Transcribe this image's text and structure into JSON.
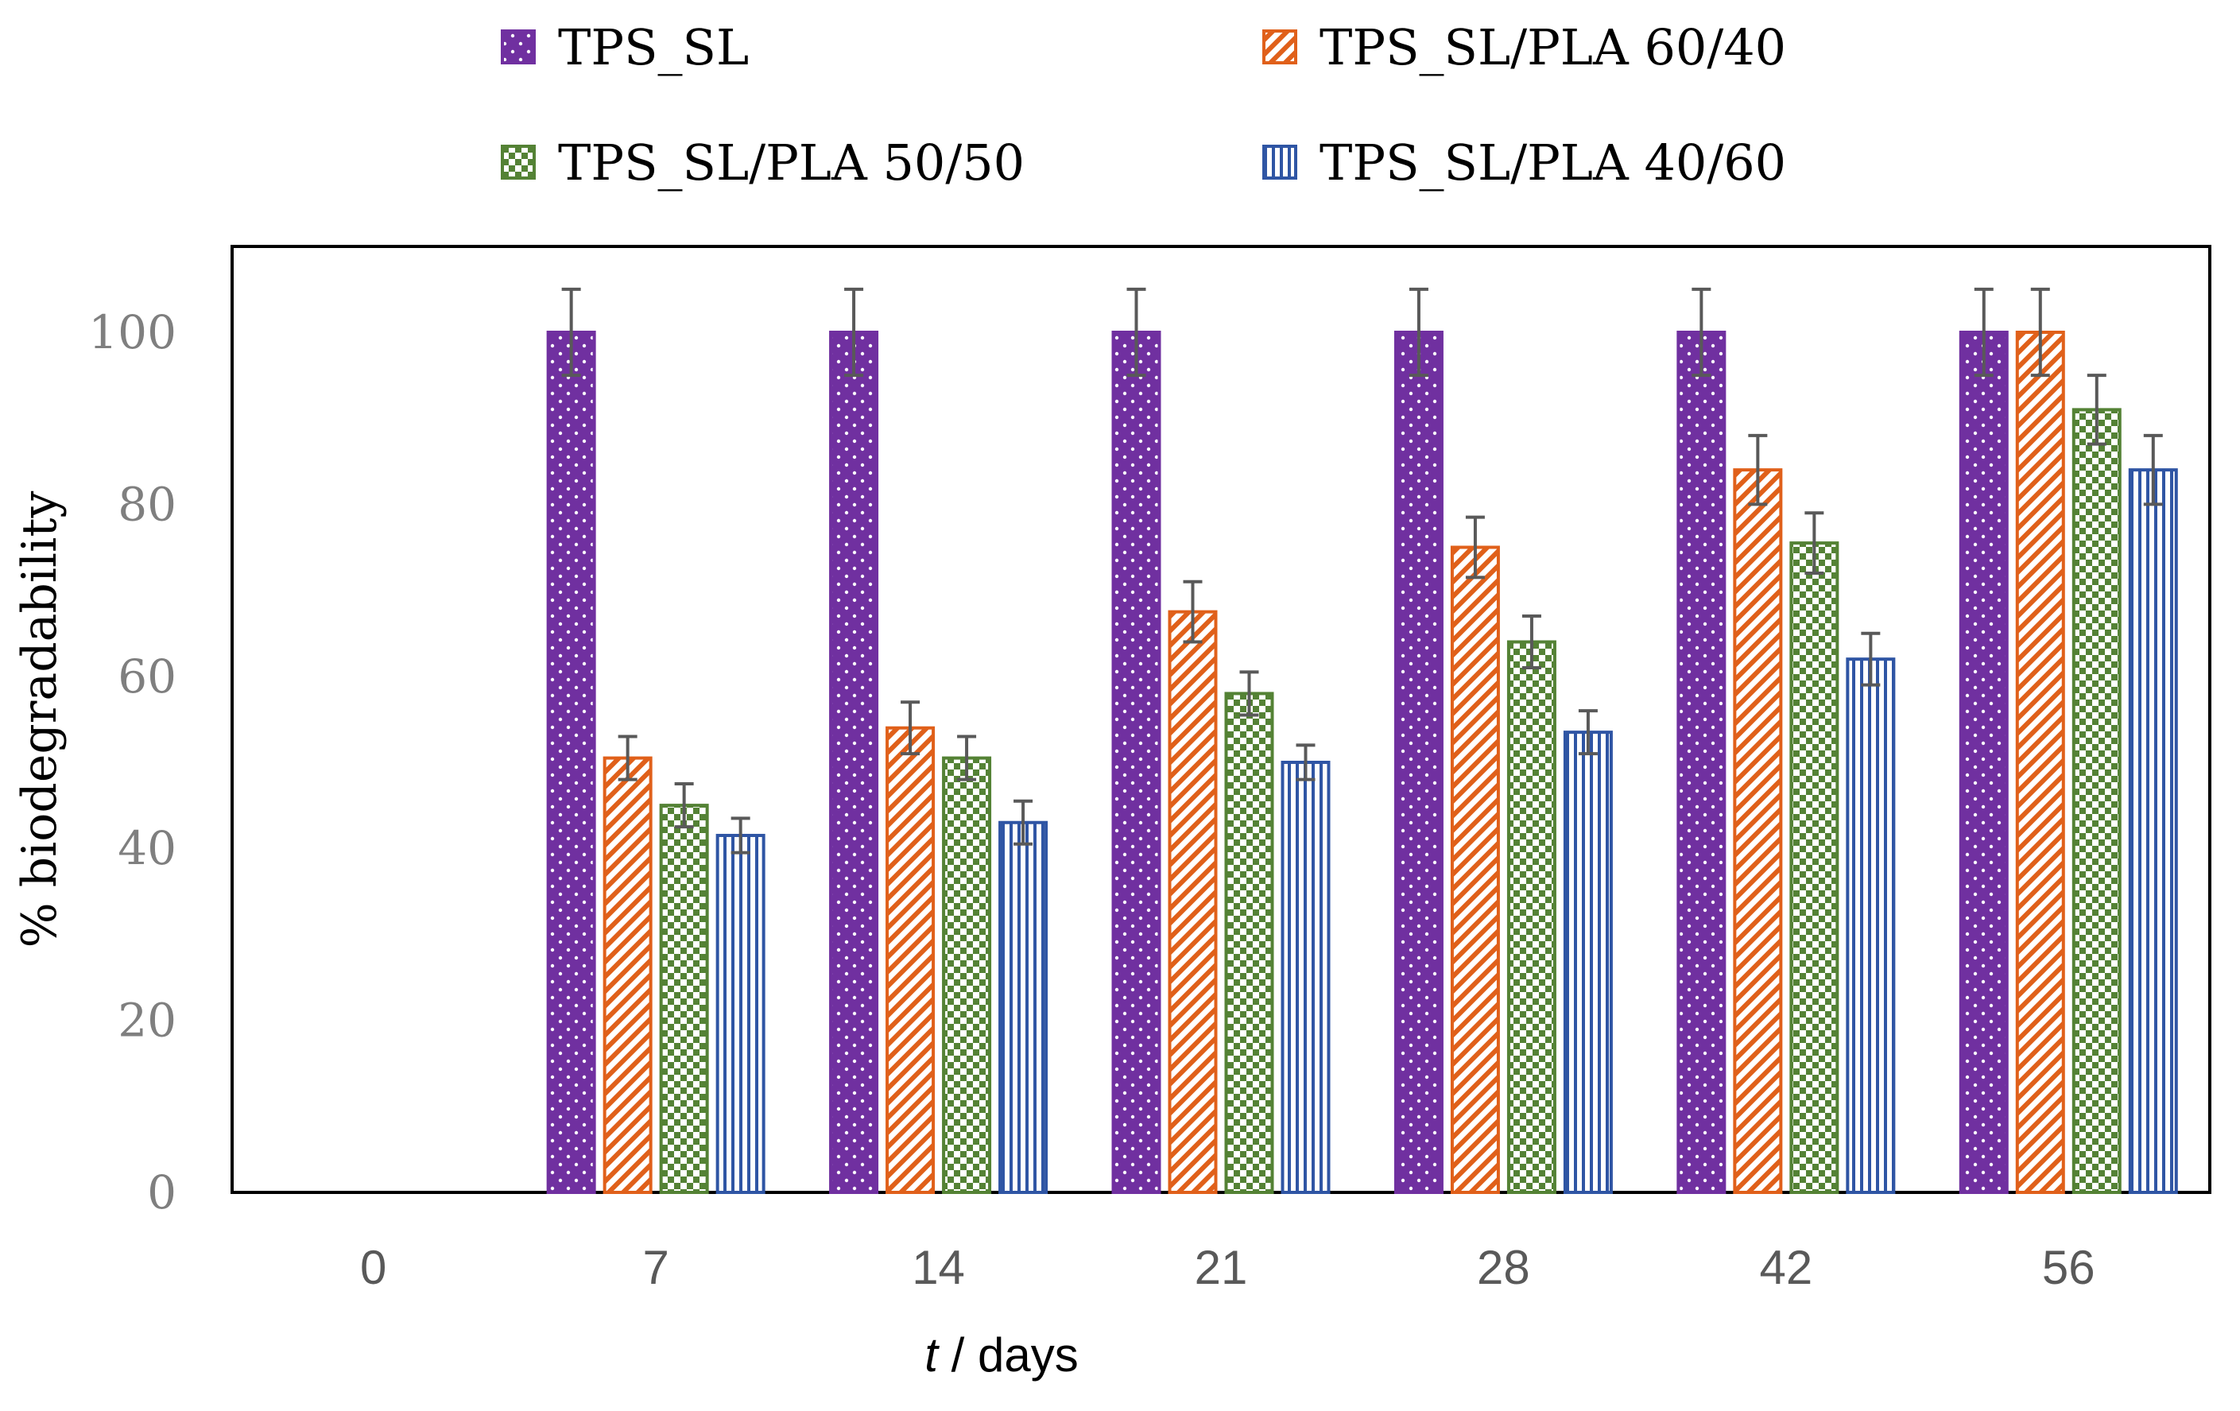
{
  "chart_data": {
    "type": "bar",
    "title": "",
    "xlabel_italic": "t",
    "xlabel_rest": " / days",
    "ylabel": "% biodegradability",
    "categories": [
      "0",
      "7",
      "14",
      "21",
      "28",
      "42",
      "56"
    ],
    "ylim": [
      0,
      110
    ],
    "yticks": [
      "0",
      "20",
      "40",
      "60",
      "80",
      "100"
    ],
    "legend_position": "top",
    "series": [
      {
        "name": "TPS_SL",
        "pattern": "dots",
        "color": "#7030A0",
        "values": [
          0,
          100,
          100,
          100,
          100,
          100,
          100
        ],
        "errors": [
          0,
          5,
          5,
          5,
          5,
          5,
          5
        ]
      },
      {
        "name": "TPS_SL/PLA 60/40",
        "pattern": "diagonal",
        "color": "#E0601A",
        "values": [
          0,
          50.5,
          54,
          67.5,
          75,
          84,
          100
        ],
        "errors": [
          0,
          2.5,
          3,
          3.5,
          3.5,
          4,
          5
        ]
      },
      {
        "name": "TPS_SL/PLA 50/50",
        "pattern": "checker",
        "color": "#548235",
        "values": [
          0,
          45,
          50.5,
          58,
          64,
          75.5,
          91
        ],
        "errors": [
          0,
          2.5,
          2.5,
          2.5,
          3,
          3.5,
          4
        ]
      },
      {
        "name": "TPS_SL/PLA 40/60",
        "pattern": "vertical",
        "color": "#2F55A4",
        "values": [
          0,
          41.5,
          43,
          50,
          53.5,
          62,
          84
        ],
        "errors": [
          0,
          2,
          2.5,
          2,
          2.5,
          3,
          4
        ]
      }
    ]
  }
}
